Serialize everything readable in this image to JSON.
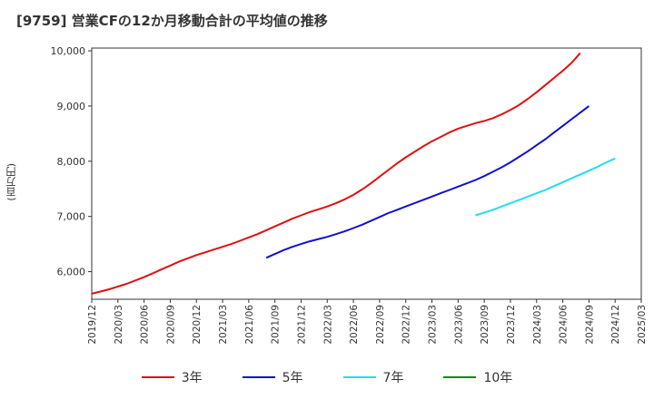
{
  "chart_data": {
    "type": "line",
    "title": "[9759]  営業CFの12か月移動合計の平均値の推移",
    "ylabel": "(百万円)",
    "xlabel": "",
    "ylim": [
      5500,
      10050
    ],
    "y_ticks": [
      6000,
      7000,
      8000,
      9000,
      10000
    ],
    "y_tick_labels": [
      "6,000",
      "7,000",
      "8,000",
      "9,000",
      "10,000"
    ],
    "x_tick_labels": [
      "2019/12",
      "2020/03",
      "2020/06",
      "2020/09",
      "2020/12",
      "2021/03",
      "2021/06",
      "2021/09",
      "2021/12",
      "2022/03",
      "2022/06",
      "2022/09",
      "2022/12",
      "2023/03",
      "2023/06",
      "2023/09",
      "2023/12",
      "2024/03",
      "2024/06",
      "2024/09",
      "2024/12",
      "2025/03"
    ],
    "grid": true,
    "legend_position": "bottom",
    "series": [
      {
        "name": "3年",
        "color": "#dd1111",
        "start": "2019/12",
        "values": [
          5600,
          5640,
          5680,
          5730,
          5780,
          5840,
          5900,
          5970,
          6040,
          6110,
          6180,
          6240,
          6300,
          6350,
          6400,
          6450,
          6500,
          6560,
          6620,
          6680,
          6750,
          6820,
          6890,
          6960,
          7020,
          7080,
          7130,
          7180,
          7240,
          7310,
          7390,
          7490,
          7600,
          7720,
          7840,
          7960,
          8070,
          8170,
          8270,
          8360,
          8440,
          8520,
          8590,
          8640,
          8690,
          8730,
          8780,
          8850,
          8930,
          9020,
          9130,
          9250,
          9380,
          9510,
          9640,
          9780,
          9960
        ]
      },
      {
        "name": "5年",
        "color": "#1111cc",
        "start": "2021/08",
        "values": [
          6250,
          6320,
          6390,
          6450,
          6500,
          6550,
          6590,
          6630,
          6680,
          6730,
          6790,
          6850,
          6920,
          6990,
          7060,
          7120,
          7180,
          7240,
          7300,
          7360,
          7420,
          7480,
          7540,
          7600,
          7660,
          7730,
          7810,
          7890,
          7980,
          8080,
          8180,
          8290,
          8400,
          8520,
          8640,
          8760,
          8880,
          9000
        ]
      },
      {
        "name": "7年",
        "color": "#22ddee",
        "start": "2023/08",
        "values": [
          7020,
          7070,
          7120,
          7180,
          7240,
          7300,
          7360,
          7420,
          7480,
          7550,
          7620,
          7690,
          7760,
          7830,
          7900,
          7980,
          8050
        ]
      },
      {
        "name": "10年",
        "color": "#118811",
        "start": "",
        "values": []
      }
    ]
  }
}
